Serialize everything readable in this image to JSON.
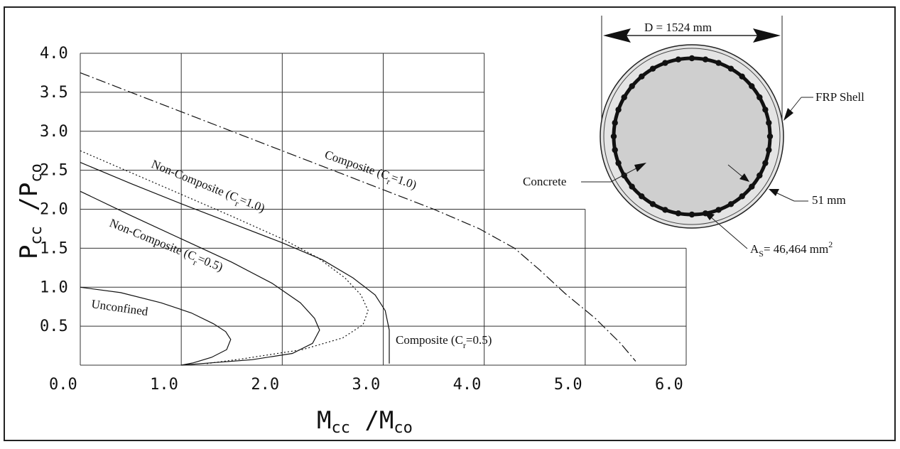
{
  "chart_data": {
    "type": "line",
    "xlabel": {
      "main": "M",
      "sub1": "cc",
      "mid": " /M",
      "sub2": "co"
    },
    "ylabel": {
      "main": "P",
      "sub1": "cc",
      "mid": " /P",
      "sub2": "co"
    },
    "xlim": [
      0,
      6
    ],
    "ylim": [
      0,
      4
    ],
    "x_ticks": [
      "0.0",
      "1.0",
      "2.0",
      "3.0",
      "4.0",
      "5.0",
      "6.0"
    ],
    "y_ticks": [
      "0.5",
      "1.0",
      "1.5",
      "2.0",
      "2.5",
      "3.0",
      "3.5",
      "4.0"
    ],
    "grid": true,
    "series": [
      {
        "name": "Unconfined",
        "style": "solid",
        "points": [
          [
            0,
            1.0
          ],
          [
            0.4,
            0.93
          ],
          [
            0.8,
            0.8
          ],
          [
            1.1,
            0.67
          ],
          [
            1.32,
            0.53
          ],
          [
            1.44,
            0.43
          ],
          [
            1.49,
            0.33
          ],
          [
            1.45,
            0.2
          ],
          [
            1.3,
            0.1
          ],
          [
            1.12,
            0.03
          ],
          [
            1.0,
            0.0
          ]
        ]
      },
      {
        "name": "Non-Composite (C r=0.5)",
        "style": "solid",
        "points": [
          [
            0,
            2.23
          ],
          [
            0.5,
            1.92
          ],
          [
            1.0,
            1.62
          ],
          [
            1.5,
            1.32
          ],
          [
            1.9,
            1.05
          ],
          [
            2.18,
            0.8
          ],
          [
            2.32,
            0.6
          ],
          [
            2.37,
            0.45
          ],
          [
            2.3,
            0.28
          ],
          [
            2.1,
            0.15
          ],
          [
            1.7,
            0.07
          ],
          [
            1.3,
            0.03
          ],
          [
            1.0,
            0.0
          ]
        ]
      },
      {
        "name": "Non-Composite (C r=1.0)",
        "style": "dotted",
        "points": [
          [
            0,
            2.75
          ],
          [
            0.5,
            2.47
          ],
          [
            1.0,
            2.19
          ],
          [
            1.5,
            1.91
          ],
          [
            2.0,
            1.62
          ],
          [
            2.35,
            1.38
          ],
          [
            2.62,
            1.12
          ],
          [
            2.78,
            0.9
          ],
          [
            2.85,
            0.7
          ],
          [
            2.8,
            0.52
          ],
          [
            2.6,
            0.35
          ],
          [
            2.2,
            0.2
          ],
          [
            1.6,
            0.08
          ],
          [
            1.25,
            0.02
          ]
        ]
      },
      {
        "name": "Composite (C r=0.5)",
        "style": "solid",
        "points": [
          [
            0,
            2.6
          ],
          [
            0.5,
            2.33
          ],
          [
            1.0,
            2.07
          ],
          [
            1.5,
            1.82
          ],
          [
            2.0,
            1.57
          ],
          [
            2.4,
            1.35
          ],
          [
            2.7,
            1.12
          ],
          [
            2.92,
            0.9
          ],
          [
            3.02,
            0.7
          ],
          [
            3.06,
            0.45
          ],
          [
            3.06,
            0.2
          ],
          [
            3.06,
            0.02
          ]
        ]
      },
      {
        "name": "Composite (C r=1.0)",
        "style": "dashdot",
        "points": [
          [
            0,
            3.75
          ],
          [
            0.5,
            3.5
          ],
          [
            1.0,
            3.25
          ],
          [
            1.5,
            3.0
          ],
          [
            2.0,
            2.75
          ],
          [
            2.5,
            2.5
          ],
          [
            3.0,
            2.25
          ],
          [
            3.5,
            2.0
          ],
          [
            3.95,
            1.75
          ],
          [
            4.3,
            1.5
          ],
          [
            4.55,
            1.22
          ],
          [
            4.8,
            0.92
          ],
          [
            5.1,
            0.6
          ],
          [
            5.35,
            0.28
          ],
          [
            5.5,
            0.05
          ]
        ]
      }
    ],
    "annotations": [
      {
        "text": "Unconfined",
        "x": 0.1,
        "y": 0.62,
        "angle": 8
      },
      {
        "text": "Non-Composite (C r=0.5)",
        "x": 0.3,
        "y": 1.82,
        "angle": 22
      },
      {
        "text": "Non-Composite (C r=1.0)",
        "x": 0.65,
        "y": 2.62,
        "angle": 22
      },
      {
        "text": "Composite (C r=0.5)",
        "x": 3.1,
        "y": 0.3,
        "angle": 0
      },
      {
        "text": "Composite (C r=1.0)",
        "x": 2.35,
        "y": 2.75,
        "angle": 18
      }
    ]
  },
  "labels": {
    "unconfined": "Unconfined",
    "nc05": {
      "pre": "Non-Composite (C",
      "sub": "r",
      "post": "=0.5)"
    },
    "nc10": {
      "pre": "Non-Composite (C",
      "sub": "r",
      "post": "=1.0)"
    },
    "c05": {
      "pre": "Composite (C",
      "sub": "r",
      "post": "=0.5)"
    },
    "c10": {
      "pre": "Composite (C",
      "sub": "r",
      "post": "=1.0)"
    }
  },
  "section": {
    "diameter": "D = 1524 mm",
    "frp": "FRP Shell",
    "concrete": "Concrete",
    "thickness": "51 mm",
    "steel_pre": "A",
    "steel_sub": "S",
    "steel_post": "= 46,464 mm",
    "steel_sup": "2"
  },
  "colors": {
    "line": "#111111",
    "section_fill": "#cfcfcf",
    "frame": "#222222"
  }
}
